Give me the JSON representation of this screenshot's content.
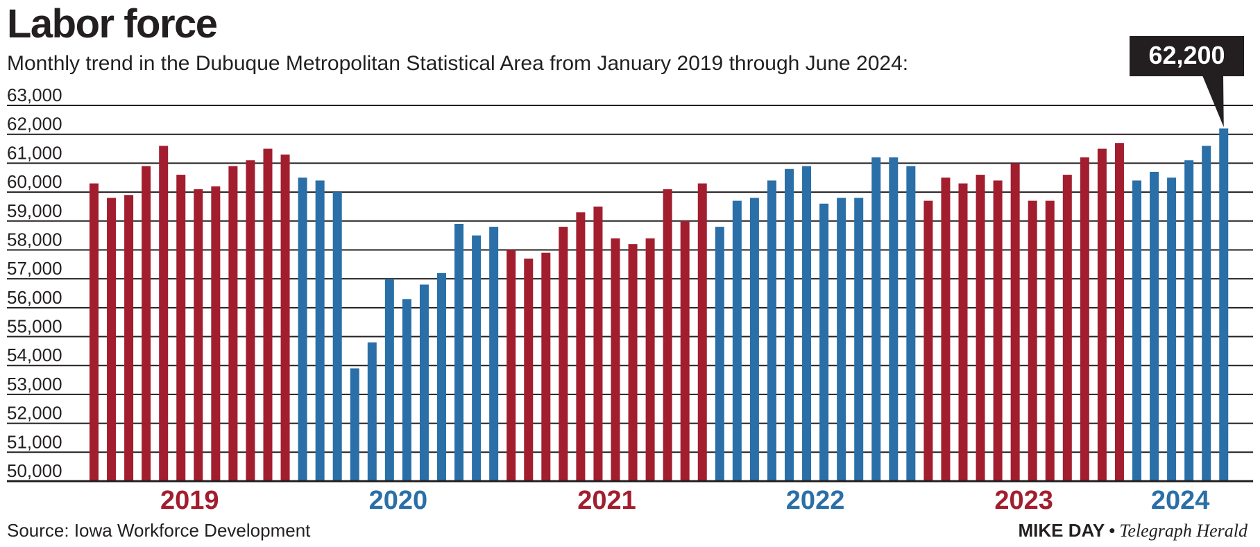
{
  "chart_data": {
    "type": "bar",
    "title": "Labor force",
    "subtitle": "Monthly trend in the Dubuque Metropolitan Statistical Area from January 2019 through June 2024:",
    "ylim": [
      50000,
      63000
    ],
    "y_ticks": [
      "63,000",
      "62,000",
      "61,000",
      "60,000",
      "59,000",
      "58,000",
      "57,000",
      "56,000",
      "55,000",
      "54,000",
      "53,000",
      "52,000",
      "51,000",
      "50,000"
    ],
    "grid": true,
    "years": [
      {
        "label": "2019",
        "color": "#a21e2e",
        "values": [
          60300,
          59800,
          59900,
          60900,
          61600,
          60600,
          60100,
          60200,
          60900,
          61100,
          61500,
          61300
        ]
      },
      {
        "label": "2020",
        "color": "#2a6fa7",
        "values": [
          60500,
          60400,
          60000,
          53900,
          54800,
          57000,
          56300,
          56800,
          57200,
          58900,
          58500,
          58800
        ]
      },
      {
        "label": "2021",
        "color": "#a21e2e",
        "values": [
          58000,
          57700,
          57900,
          58800,
          59300,
          59500,
          58400,
          58200,
          58400,
          60100,
          59000,
          60300
        ]
      },
      {
        "label": "2022",
        "color": "#2a6fa7",
        "values": [
          58800,
          59700,
          59800,
          60400,
          60800,
          60900,
          59600,
          59800,
          59800,
          61200,
          61200,
          60900
        ]
      },
      {
        "label": "2023",
        "color": "#a21e2e",
        "values": [
          59700,
          60500,
          60300,
          60600,
          60400,
          61000,
          59700,
          59700,
          60600,
          61200,
          61500,
          61700
        ]
      },
      {
        "label": "2024",
        "color": "#2a6fa7",
        "values": [
          60400,
          60700,
          60500,
          61100,
          61600,
          62200
        ]
      }
    ],
    "callout": {
      "label": "62,200",
      "value": 62200
    }
  },
  "footer": {
    "source": "Source: Iowa Workforce Development",
    "author": "MIKE DAY",
    "separator": "•",
    "publication": "Telegraph Herald"
  }
}
